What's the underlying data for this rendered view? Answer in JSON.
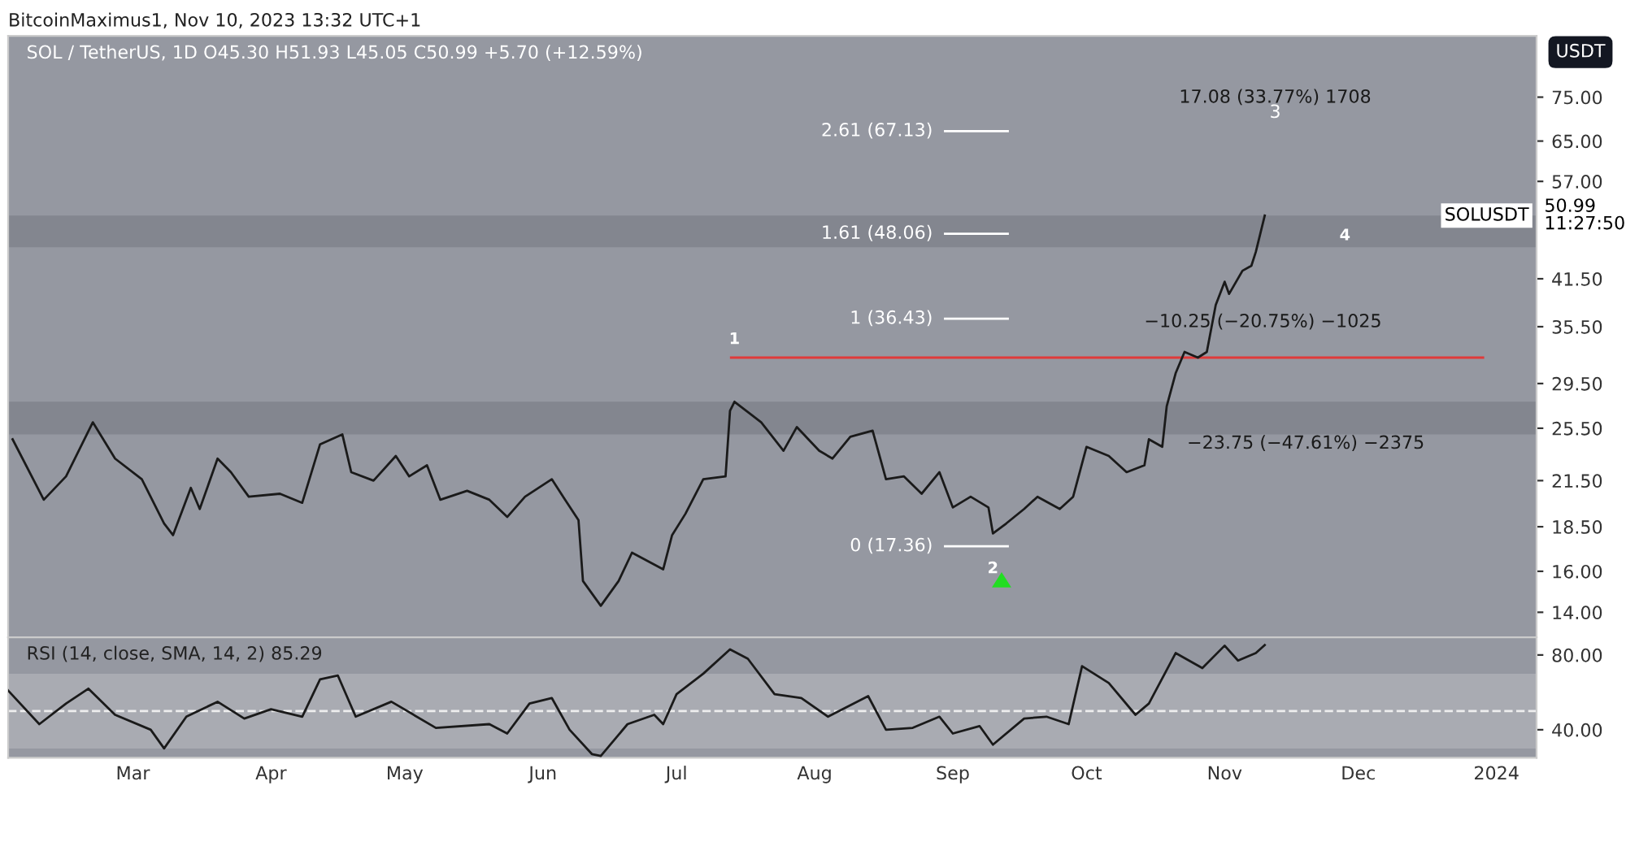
{
  "chart_data": [
    {
      "type": "line",
      "title": "SOL / TetherUS, 1D O45.30 H51.93 L45.05 C50.99 +5.70 (+12.59%)",
      "log": "y",
      "grid": false,
      "legend": false,
      "series": [
        {
          "color": "#1a1a1a",
          "x": [
            "2023-02-02",
            "2023-02-09",
            "2023-02-14",
            "2023-02-20",
            "2023-02-25",
            "2023-03-03",
            "2023-03-08",
            "2023-03-10",
            "2023-03-14",
            "2023-03-16",
            "2023-03-20",
            "2023-03-23",
            "2023-03-27",
            "2023-04-03",
            "2023-04-08",
            "2023-04-12",
            "2023-04-17",
            "2023-04-19",
            "2023-04-24",
            "2023-04-29",
            "2023-05-02",
            "2023-05-06",
            "2023-05-09",
            "2023-05-15",
            "2023-05-20",
            "2023-05-24",
            "2023-05-28",
            "2023-06-03",
            "2023-06-06",
            "2023-06-09",
            "2023-06-10",
            "2023-06-14",
            "2023-06-18",
            "2023-06-21",
            "2023-06-28",
            "2023-06-30",
            "2023-07-03",
            "2023-07-07",
            "2023-07-12",
            "2023-07-13",
            "2023-07-14",
            "2023-07-20",
            "2023-07-25",
            "2023-07-28",
            "2023-08-02",
            "2023-08-05",
            "2023-08-09",
            "2023-08-14",
            "2023-08-17",
            "2023-08-21",
            "2023-08-25",
            "2023-08-29",
            "2023-09-01",
            "2023-09-05",
            "2023-09-09",
            "2023-09-10",
            "2023-09-13",
            "2023-09-17",
            "2023-09-20",
            "2023-09-25",
            "2023-09-28",
            "2023-10-01",
            "2023-10-06",
            "2023-10-10",
            "2023-10-14",
            "2023-10-15",
            "2023-10-18",
            "2023-10-19",
            "2023-10-21",
            "2023-10-23",
            "2023-10-26",
            "2023-10-28",
            "2023-10-30",
            "2023-11-01",
            "2023-11-02",
            "2023-11-05",
            "2023-11-07",
            "2023-11-08",
            "2023-11-10"
          ],
          "values": [
            24.6,
            20.2,
            21.8,
            26.0,
            23.1,
            21.6,
            18.7,
            18.0,
            21.0,
            19.6,
            23.1,
            22.1,
            20.4,
            20.6,
            20.0,
            24.2,
            25.0,
            22.1,
            21.5,
            23.3,
            21.8,
            22.6,
            20.2,
            20.8,
            20.2,
            19.1,
            20.4,
            21.6,
            20.2,
            18.9,
            15.5,
            14.3,
            15.5,
            17.0,
            16.1,
            18.0,
            19.3,
            21.6,
            21.8,
            27.0,
            27.8,
            26.0,
            23.7,
            25.6,
            23.7,
            23.1,
            24.8,
            25.3,
            21.6,
            21.8,
            20.6,
            22.1,
            19.7,
            20.4,
            19.7,
            18.1,
            18.7,
            19.6,
            20.4,
            19.6,
            20.4,
            24.0,
            23.3,
            22.1,
            22.6,
            24.6,
            24.0,
            27.4,
            30.5,
            32.7,
            32.1,
            32.7,
            38.1,
            41.1,
            39.5,
            42.6,
            43.3,
            45.3,
            50.99
          ]
        }
      ],
      "xlim": [
        "2023-02-01",
        "2024-01-10"
      ],
      "ylim": [
        12.9,
        91.6
      ],
      "yticks": [
        {
          "value": 14,
          "label": "14.00"
        },
        {
          "value": 16,
          "label": "16.00"
        },
        {
          "value": 18.5,
          "label": "18.50"
        },
        {
          "value": 21.5,
          "label": "21.50"
        },
        {
          "value": 25.5,
          "label": "25.50"
        },
        {
          "value": 29.5,
          "label": "29.50"
        },
        {
          "value": 35.5,
          "label": "35.50"
        },
        {
          "value": 41.5,
          "label": "41.50"
        },
        {
          "value": 57,
          "label": "57.00"
        },
        {
          "value": 65,
          "label": "65.00"
        },
        {
          "value": 75,
          "label": "75.00"
        }
      ],
      "tick_labels": "y",
      "bands": [
        {
          "axis": "y",
          "from": 46.0,
          "to": 51.0,
          "color": "#83868f"
        },
        {
          "axis": "y",
          "from": 25.0,
          "to": 27.8,
          "color": "#83868f"
        }
      ],
      "ref_lines": [
        {
          "axis": "y",
          "value": 32.1,
          "color": "#e03a3a"
        },
        {
          "axis": "y",
          "value": 67.13,
          "label": "2.61 (67.13)",
          "color": "#ffffff"
        },
        {
          "axis": "y",
          "value": 48.06,
          "label": "1.61 (48.06)",
          "color": "#ffffff"
        },
        {
          "axis": "y",
          "value": 36.43,
          "label": "1 (36.43)",
          "color": "#ffffff"
        },
        {
          "axis": "y",
          "value": 17.36,
          "label": "0 (17.36)",
          "color": "#ffffff"
        }
      ],
      "annotations": [
        "BitcoinMaximus1, Nov 10, 2023 13:32 UTC+1",
        "USDT",
        "SOLUSDT",
        "50.99",
        "11:27:50",
        "3",
        "17.08 (33.77%) 1708",
        "−10.25 (−20.75%) −1025",
        "−23.75 (−47.61%) −2375",
        {
          "text": "1",
          "x": "2023-07-14",
          "y": 32.1
        },
        {
          "text": "2",
          "x": "2023-09-10",
          "y": 17.36
        },
        {
          "text": "4",
          "x": "2023-11-28",
          "y": 45.0
        }
      ]
    },
    {
      "type": "line",
      "title": "RSI (14, close, SMA, 14, 2) 85.29",
      "grid": false,
      "legend": false,
      "series": [
        {
          "color": "#1a1a1a",
          "x": [
            "2023-02-01",
            "2023-02-08",
            "2023-02-14",
            "2023-02-19",
            "2023-02-25",
            "2023-03-05",
            "2023-03-08",
            "2023-03-13",
            "2023-03-20",
            "2023-03-26",
            "2023-04-01",
            "2023-04-08",
            "2023-04-12",
            "2023-04-16",
            "2023-04-20",
            "2023-04-28",
            "2023-05-08",
            "2023-05-20",
            "2023-05-24",
            "2023-05-29",
            "2023-06-03",
            "2023-06-07",
            "2023-06-12",
            "2023-06-14",
            "2023-06-20",
            "2023-06-26",
            "2023-06-28",
            "2023-07-01",
            "2023-07-07",
            "2023-07-13",
            "2023-07-17",
            "2023-07-23",
            "2023-07-29",
            "2023-08-04",
            "2023-08-13",
            "2023-08-17",
            "2023-08-23",
            "2023-08-29",
            "2023-09-01",
            "2023-09-07",
            "2023-09-10",
            "2023-09-17",
            "2023-09-22",
            "2023-09-27",
            "2023-09-30",
            "2023-10-06",
            "2023-10-12",
            "2023-10-15",
            "2023-10-21",
            "2023-10-27",
            "2023-11-01",
            "2023-11-04",
            "2023-11-08",
            "2023-11-10"
          ],
          "values": [
            61,
            43,
            54,
            62,
            48,
            40,
            30,
            47,
            55,
            46,
            51,
            47,
            67,
            69,
            47,
            55,
            41,
            43,
            38,
            54,
            57,
            40,
            27,
            26,
            43,
            48,
            43,
            59,
            70,
            83,
            78,
            59,
            57,
            47,
            58,
            40,
            41,
            47,
            38,
            42,
            32,
            46,
            47,
            43,
            74,
            65,
            48,
            54,
            81,
            73,
            85,
            77,
            81,
            85.29
          ]
        }
      ],
      "xlim": [
        "2023-02-01",
        "2024-01-10"
      ],
      "xticks": [
        {
          "value": "2023-03-01",
          "label": "Mar"
        },
        {
          "value": "2023-04-01",
          "label": "Apr"
        },
        {
          "value": "2023-05-01",
          "label": "May"
        },
        {
          "value": "2023-06-01",
          "label": "Jun"
        },
        {
          "value": "2023-07-01",
          "label": "Jul"
        },
        {
          "value": "2023-08-01",
          "label": "Aug"
        },
        {
          "value": "2023-09-01",
          "label": "Sep"
        },
        {
          "value": "2023-10-01",
          "label": "Oct"
        },
        {
          "value": "2023-11-01",
          "label": "Nov"
        },
        {
          "value": "2023-12-01",
          "label": "Dec"
        },
        {
          "value": "2024-01-01",
          "label": "2024"
        }
      ],
      "ylim": [
        25,
        89.4
      ],
      "yticks": [
        {
          "value": 40,
          "label": "40.00"
        },
        {
          "value": 80,
          "label": "80.00"
        }
      ],
      "bands": [
        {
          "axis": "y",
          "from": 30,
          "to": 70,
          "color": "#a9abb2"
        }
      ],
      "ref_lines": [
        {
          "axis": "y",
          "value": 50,
          "color": "#eeeeee",
          "line_style": "dashed"
        }
      ]
    }
  ]
}
